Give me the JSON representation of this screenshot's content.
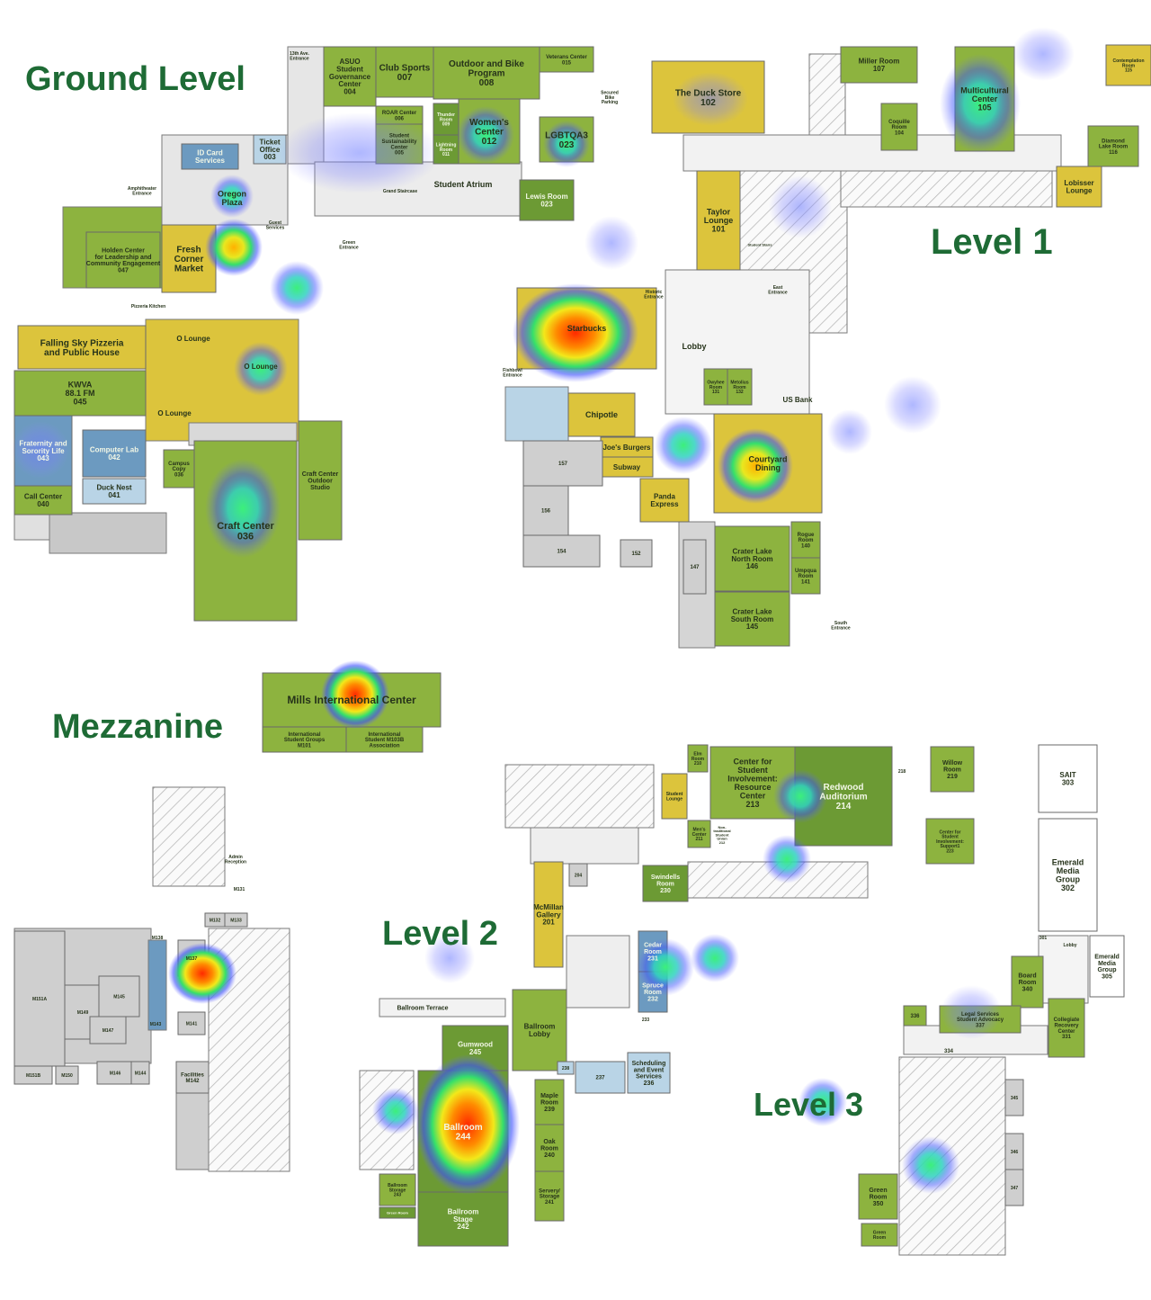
{
  "levels": [
    {
      "title": "Ground Level",
      "labels": [
        "ASUO\nStudent\nGovernance\nCenter\n004",
        "Club Sports\n007",
        "Outdoor and Bike\nProgram\n008",
        "Veterans Center\n015",
        "ROAR Center\n006",
        "Student\nSustainability\nCenter\n005",
        "Thunder\nRoom\n009",
        "Lightning\nRoom\n011",
        "Women's\nCenter\n012",
        "LGBTQA3\n023",
        "Lewis Room\n023",
        "Student Atrium",
        "Grand Staircase",
        "ID Card\nServices",
        "Ticket\nOffice\n003",
        "Oregon\nPlaza",
        "Guest\nServices",
        "Holden Center\nfor Leadership and\nCommunity Engagement\n047",
        "Fresh\nCorner\nMarket",
        "Pizzeria Kitchen",
        "Falling Sky Pizzeria\nand Public House",
        "KWVA\n88.1 FM\n045",
        "Fraternity and\nSorority Life\n043",
        "Computer Lab\n042",
        "Duck Nest\n041",
        "Call Center\n040",
        "Campus\nCopy\n036",
        "Craft Center\n036",
        "Craft Center\nOutdoor\nStudio",
        "O Lounge",
        "O Lounge",
        "O Lounge",
        "Amphitheater\nEntrance",
        "13th Ave.\nEntrance",
        "Green\nEntrance",
        "Secured\nBike\nParking"
      ]
    },
    {
      "title": "Level 1",
      "labels": [
        "The Duck Store\n102",
        "Miller Room\n107",
        "Multicultural\nCenter\n105",
        "Coquille\nRoom\n104",
        "Diamond\nLake Room\n116",
        "Contemplation\nRoom\n115",
        "Lobisser\nLounge",
        "Taylor\nLounge\n101",
        "Starbucks",
        "Lobby",
        "Historic\nEntrance",
        "Fishbowl\nEntrance",
        "Chipotle",
        "Joe's Burgers",
        "Subway",
        "Panda\nExpress",
        "Courtyard\nDining",
        "Owyhee\nRoom\n131",
        "Metolius\nRoom\n132",
        "US Bank",
        "Crater Lake\nNorth Room\n146",
        "Crater Lake\nSouth Room\n145",
        "Rogue\nRoom\n140",
        "Umpqua\nRoom\n141",
        "157",
        "156",
        "154",
        "152",
        "147",
        "East\nEntrance",
        "South\nEntrance",
        "Student Stairs"
      ]
    },
    {
      "title": "Mezzanine",
      "labels": [
        "Mills International Center",
        "International\nStudent Groups\nM101",
        "International\nStudent M103B\nAssociation",
        "Admin\nReception",
        "M131",
        "M132",
        "M133",
        "M138",
        "M137",
        "M143",
        "M141",
        "Facilities\nM142",
        "M151A",
        "M149",
        "M145",
        "M147",
        "M151B",
        "M150",
        "M146",
        "M144"
      ]
    },
    {
      "title": "Level 2",
      "labels": [
        "Elm\nRoom\n210",
        "Student\nLounge",
        "Center for\nStudent\nInvolvement:\nResource\nCenter\n213",
        "Men's\nCenter\n211",
        "Non-\ntraditional\nStudent\nUnion\n212",
        "Redwood\nAuditorium\n214",
        "218",
        "Willow\nRoom\n219",
        "Center for\nStudent\nInvolvement:\nSupport1\n223",
        "Swindells\nRoom\n230",
        "204",
        "McMillan\nGallery\n201",
        "Cedar\nRoom\n231",
        "Spruce\nRoom\n232",
        "233",
        "Ballroom Terrace",
        "Gumwood\n245",
        "Ballroom\n244",
        "Ballroom\nStage\n242",
        "Ballroom\nLobby",
        "Ballroom\nStorage\n243",
        "Green Room",
        "238",
        "237",
        "Scheduling\nand Event\nServices\n236",
        "Maple\nRoom\n239",
        "Oak\nRoom\n240",
        "Servery/\nStorage\n241"
      ]
    },
    {
      "title": "Level 3",
      "labels": [
        "SAIT\n303",
        "Emerald\nMedia\nGroup\n302",
        "301",
        "Lobby",
        "Emerald\nMedia\nGroup\n305",
        "Board\nRoom\n340",
        "Collegiate\nRecovery\nCenter\n331",
        "336",
        "Legal Services\nStudent Advocacy\n337",
        "334",
        "345",
        "346",
        "347",
        "Green\nRoom\n350",
        "Green\nRoom"
      ]
    }
  ]
}
